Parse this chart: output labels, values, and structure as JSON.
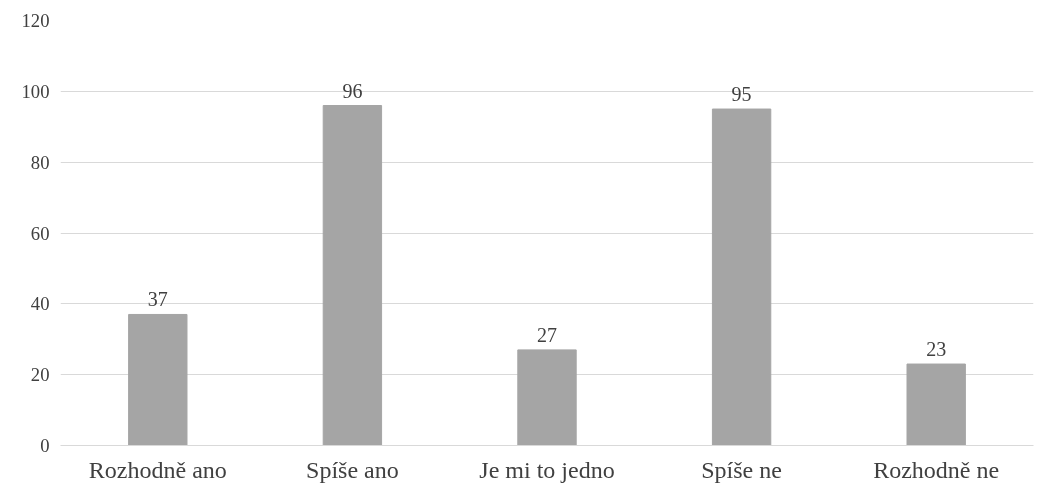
{
  "chart_data": {
    "type": "bar",
    "categories": [
      "Rozhodně ano",
      "Spíše ano",
      "Je mi to jedno",
      "Spíše ne",
      "Rozhodně ne"
    ],
    "values": [
      37,
      96,
      27,
      95,
      23
    ],
    "color": "#a5a5a5",
    "ylim": [
      0,
      120
    ],
    "yticks": [
      0,
      20,
      40,
      60,
      80,
      100,
      120
    ],
    "grid": "y",
    "data_labels": true
  }
}
